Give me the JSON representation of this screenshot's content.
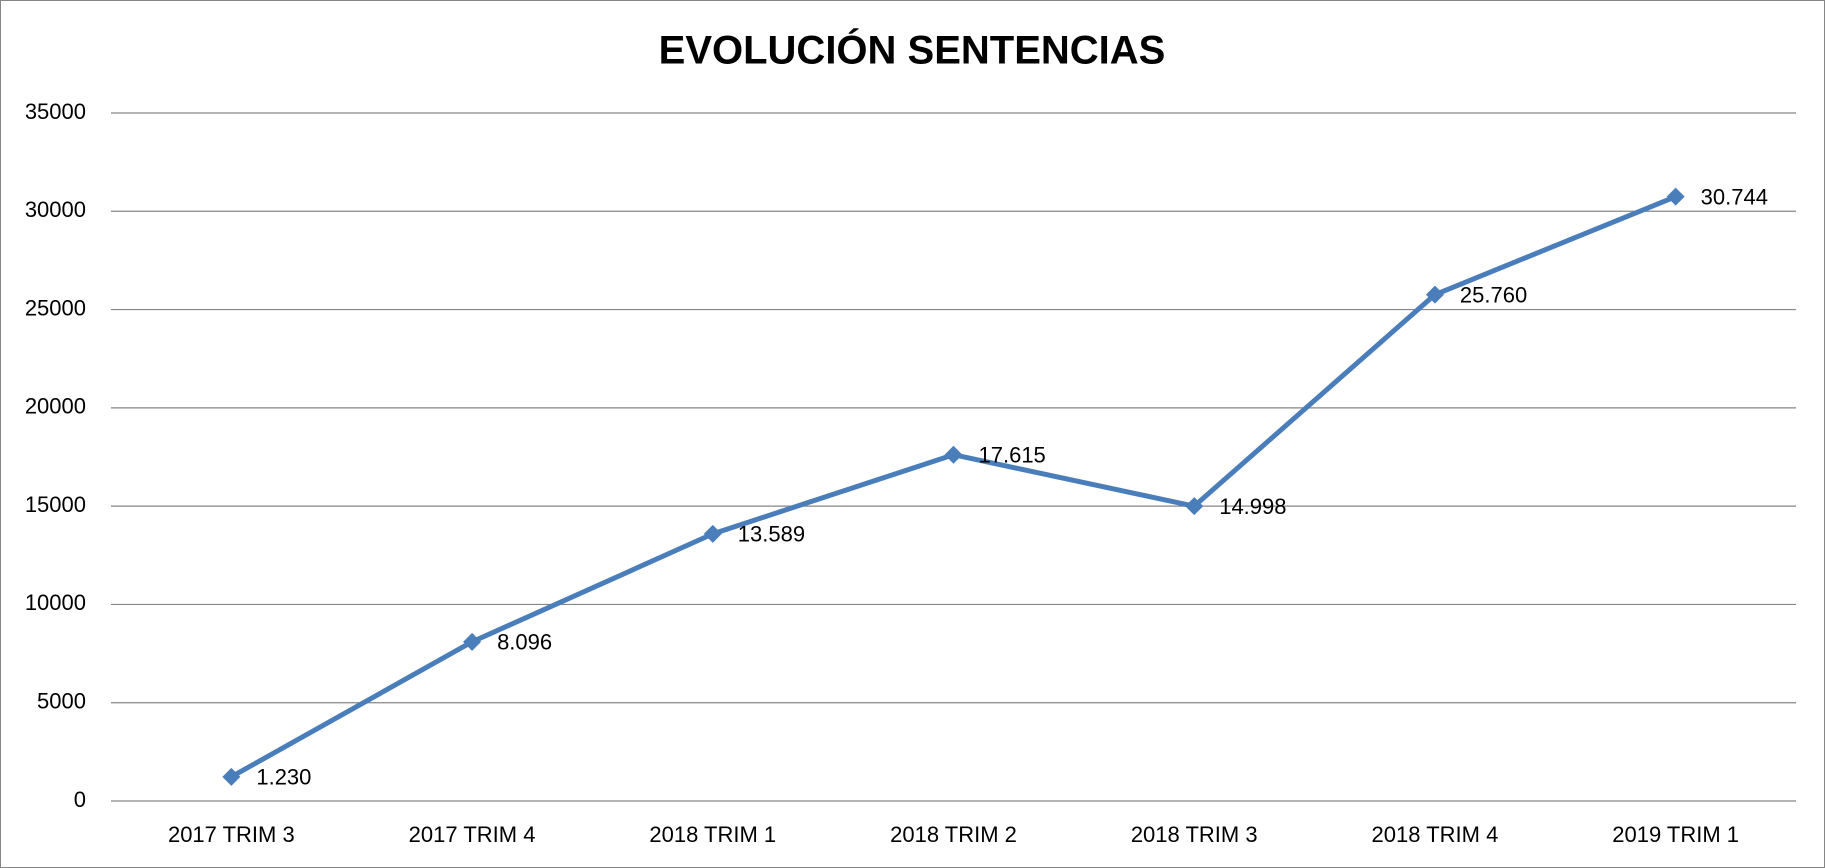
{
  "chart_data": {
    "type": "line",
    "title": "EVOLUCIÓN SENTENCIAS",
    "categories": [
      "2017 TRIM 3",
      "2017 TRIM 4",
      "2018 TRIM 1",
      "2018 TRIM 2",
      "2018 TRIM 3",
      "2018 TRIM 4",
      "2019 TRIM 1"
    ],
    "series": [
      {
        "name": "Sentencias",
        "color": "#4a7ebb",
        "values": [
          1230,
          8096,
          13589,
          17615,
          14998,
          25760,
          30744
        ],
        "value_labels": [
          "1.230",
          "8.096",
          "13.589",
          "17.615",
          "14.998",
          "25.760",
          "30.744"
        ]
      }
    ],
    "ylim": [
      0,
      35000
    ],
    "yticks": [
      0,
      5000,
      10000,
      15000,
      20000,
      25000,
      30000,
      35000
    ],
    "grid": true
  }
}
